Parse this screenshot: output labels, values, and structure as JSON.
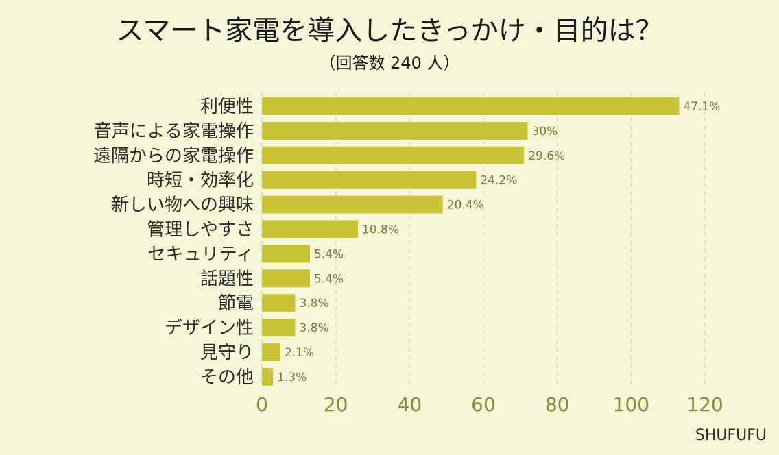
{
  "title": "スマート家電を導入したきっかけ・目的は？",
  "subtitle": "（回答数 240 人）",
  "brand": "SHUFUFU",
  "colors": {
    "bar": "#c9c435",
    "grid": "#d8d8c0",
    "background": "#f6f6d8",
    "tick": "#8a8a3a"
  },
  "chart_data": {
    "type": "bar",
    "orientation": "horizontal",
    "categories": [
      "利便性",
      "音声による家電操作",
      "遠隔からの家電操作",
      "時短・効率化",
      "新しい物への興味",
      "管理しやすさ",
      "セキュリティ",
      "話題性",
      "節電",
      "デザイン性",
      "見守り",
      "その他"
    ],
    "values": [
      113,
      72,
      71,
      58,
      49,
      26,
      13,
      13,
      9,
      9,
      5,
      3
    ],
    "data_labels": [
      "47.1%",
      "30%",
      "29.6%",
      "24.2%",
      "20.4%",
      "10.8%",
      "5.4%",
      "5.4%",
      "3.8%",
      "3.8%",
      "2.1%",
      "1.3%"
    ],
    "xlim": [
      0,
      120
    ],
    "xticks": [
      0,
      20,
      40,
      60,
      80,
      100,
      120
    ],
    "grid": true,
    "legend": "none"
  }
}
